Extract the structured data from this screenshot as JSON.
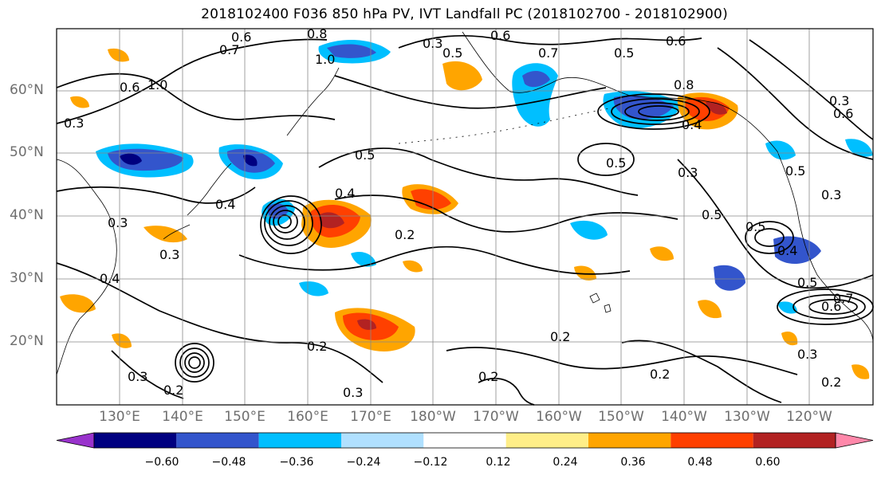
{
  "title": "2018102400 F036 850 hPa PV, IVT Landfall PC (2018102700 - 2018102900)",
  "lat_labels": [
    "60°N",
    "50°N",
    "40°N",
    "30°N",
    "20°N"
  ],
  "lon_labels": [
    "130°E",
    "140°E",
    "150°E",
    "160°E",
    "170°E",
    "180°W",
    "170°W",
    "160°W",
    "150°W",
    "140°W",
    "130°W",
    "120°W"
  ],
  "colorbar": {
    "levels": [
      "−0.60",
      "−0.48",
      "−0.36",
      "−0.24",
      "−0.12",
      "0.12",
      "0.24",
      "0.36",
      "0.48",
      "0.60"
    ],
    "colors": [
      "#9933cc",
      "#000080",
      "#3355cc",
      "#00bfff",
      "#b0e0ff",
      "#ffffff",
      "#ffee88",
      "#ffa500",
      "#ff4000",
      "#b22222",
      "#ff88aa"
    ]
  },
  "contour_labels": [
    {
      "text": "0.6"
    },
    {
      "text": "0.8"
    },
    {
      "text": "0.7"
    },
    {
      "text": "1.0"
    },
    {
      "text": "0.3"
    },
    {
      "text": "0.6"
    },
    {
      "text": "0.5"
    },
    {
      "text": "0.7"
    },
    {
      "text": "0.6"
    },
    {
      "text": "0.8"
    },
    {
      "text": "0.3"
    },
    {
      "text": "1.0"
    },
    {
      "text": "0.5"
    },
    {
      "text": "0.5"
    },
    {
      "text": "0.4"
    },
    {
      "text": "0.3"
    },
    {
      "text": "0.3"
    },
    {
      "text": "0.2"
    },
    {
      "text": "0.2"
    },
    {
      "text": "0.2"
    },
    {
      "text": "0.3"
    },
    {
      "text": "0.2"
    },
    {
      "text": "0.3"
    },
    {
      "text": "0.4"
    },
    {
      "text": "0.5"
    },
    {
      "text": "0.2"
    },
    {
      "text": "0.3"
    },
    {
      "text": "0.6"
    },
    {
      "text": "0.7"
    },
    {
      "text": "0.5"
    },
    {
      "text": "0.2"
    },
    {
      "text": "0.4"
    },
    {
      "text": "0.3"
    },
    {
      "text": "0.5"
    },
    {
      "text": "0.4"
    },
    {
      "text": "0.3"
    },
    {
      "text": "0.6"
    },
    {
      "text": "0.5"
    },
    {
      "text": "0.6"
    },
    {
      "text": "0.3"
    },
    {
      "text": "0.5"
    },
    {
      "text": "0.2"
    },
    {
      "text": "0.4"
    }
  ]
}
